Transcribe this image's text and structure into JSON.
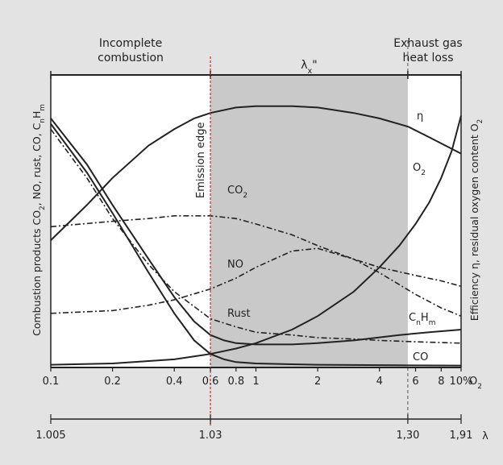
{
  "chart_data": {
    "type": "line",
    "x_axis": {
      "label": "% O₂",
      "scale": "log",
      "range": [
        0.1,
        10
      ],
      "ticks": [
        {
          "value": 0.1,
          "label": "0.1"
        },
        {
          "value": 0.2,
          "label": "0.2"
        },
        {
          "value": 0.4,
          "label": "0.4"
        },
        {
          "value": 0.6,
          "label": "0.6"
        },
        {
          "value": 0.8,
          "label": "0.8"
        },
        {
          "value": 1,
          "label": "1"
        },
        {
          "value": 2,
          "label": "2"
        },
        {
          "value": 4,
          "label": "4"
        },
        {
          "value": 6,
          "label": "6"
        },
        {
          "value": 8,
          "label": "8"
        },
        {
          "value": 10,
          "label": "10%"
        }
      ]
    },
    "lambda_axis": {
      "symbol": "λ",
      "ticks": [
        {
          "o2": 0.1,
          "label": "1.005"
        },
        {
          "o2": 0.6,
          "label": "1.03"
        },
        {
          "o2": 5.5,
          "label": "1,30"
        },
        {
          "o2": 10,
          "label": "1,91"
        }
      ]
    },
    "y_left_label": "Combustion products CO₂, NO, rust, CO, CₙHₘ",
    "y_right_label": "Efficiency η, residual oxygen content O₂",
    "regions": [
      {
        "label_lines": [
          "Incomplete",
          "combustion"
        ],
        "from": 0.1,
        "to": 0.6
      },
      {
        "label": "λₓ\"",
        "from": 0.6,
        "to": 5.5,
        "shaded": true
      },
      {
        "label_lines": [
          "Exhaust gas",
          "heat loss"
        ],
        "from": 5.5,
        "to": 10
      }
    ],
    "emission_edge": {
      "x": 0.6,
      "label": "Emission edge"
    },
    "y_range": [
      0,
      100
    ],
    "series": [
      {
        "name": "η",
        "style": "solid",
        "x": [
          0.1,
          0.15,
          0.2,
          0.3,
          0.4,
          0.5,
          0.6,
          0.8,
          1,
          1.5,
          2,
          3,
          4,
          5.5,
          7,
          10
        ],
        "y": [
          47,
          60,
          70,
          82,
          88,
          92,
          94,
          96,
          96.5,
          96.5,
          96,
          94,
          92,
          89,
          85,
          79
        ]
      },
      {
        "name": "O₂",
        "style": "solid",
        "x": [
          0.1,
          0.2,
          0.4,
          0.6,
          0.8,
          1,
          1.5,
          2,
          3,
          4,
          5,
          6,
          7,
          8,
          9,
          10
        ],
        "y": [
          1,
          1.5,
          3,
          5,
          7,
          9,
          14,
          19,
          28,
          37,
          45,
          53,
          61,
          70,
          80,
          93
        ]
      },
      {
        "name": "CO₂",
        "style": "dashdot",
        "x": [
          0.1,
          0.2,
          0.3,
          0.4,
          0.6,
          0.8,
          1,
          1.5,
          2,
          3,
          4,
          6,
          8,
          10
        ],
        "y": [
          52,
          54,
          55,
          56,
          56,
          55,
          53,
          49,
          45,
          40,
          37,
          34,
          32,
          30
        ]
      },
      {
        "name": "NO",
        "style": "dashdot",
        "x": [
          0.1,
          0.2,
          0.3,
          0.4,
          0.6,
          0.8,
          1,
          1.5,
          2,
          3,
          4,
          6,
          8,
          10
        ],
        "y": [
          20,
          21,
          23,
          25,
          29,
          33,
          37,
          43,
          44,
          40,
          35,
          27,
          22,
          19
        ]
      },
      {
        "name": "Rust",
        "style": "dashdot",
        "x": [
          0.1,
          0.15,
          0.2,
          0.3,
          0.4,
          0.6,
          0.8,
          1,
          1.5,
          2,
          3,
          4,
          6,
          10
        ],
        "y": [
          88,
          70,
          55,
          38,
          28,
          18,
          15,
          13,
          12,
          11,
          10.5,
          10,
          9.5,
          9
        ]
      },
      {
        "name": "CₙHₘ",
        "style": "solid",
        "x": [
          0.1,
          0.15,
          0.2,
          0.3,
          0.4,
          0.5,
          0.6,
          0.7,
          0.8,
          1,
          1.5,
          2,
          3,
          5,
          7,
          10
        ],
        "y": [
          92,
          75,
          60,
          40,
          26,
          17,
          12,
          10,
          9,
          8.5,
          8.5,
          9,
          10,
          12,
          13,
          14
        ]
      },
      {
        "name": "CO",
        "style": "solid",
        "x": [
          0.1,
          0.15,
          0.2,
          0.3,
          0.4,
          0.5,
          0.6,
          0.7,
          0.8,
          1,
          1.5,
          2,
          5,
          10
        ],
        "y": [
          90,
          72,
          57,
          35,
          20,
          10,
          5,
          3,
          2,
          1.5,
          1.2,
          1,
          0.8,
          0.7
        ]
      }
    ]
  }
}
